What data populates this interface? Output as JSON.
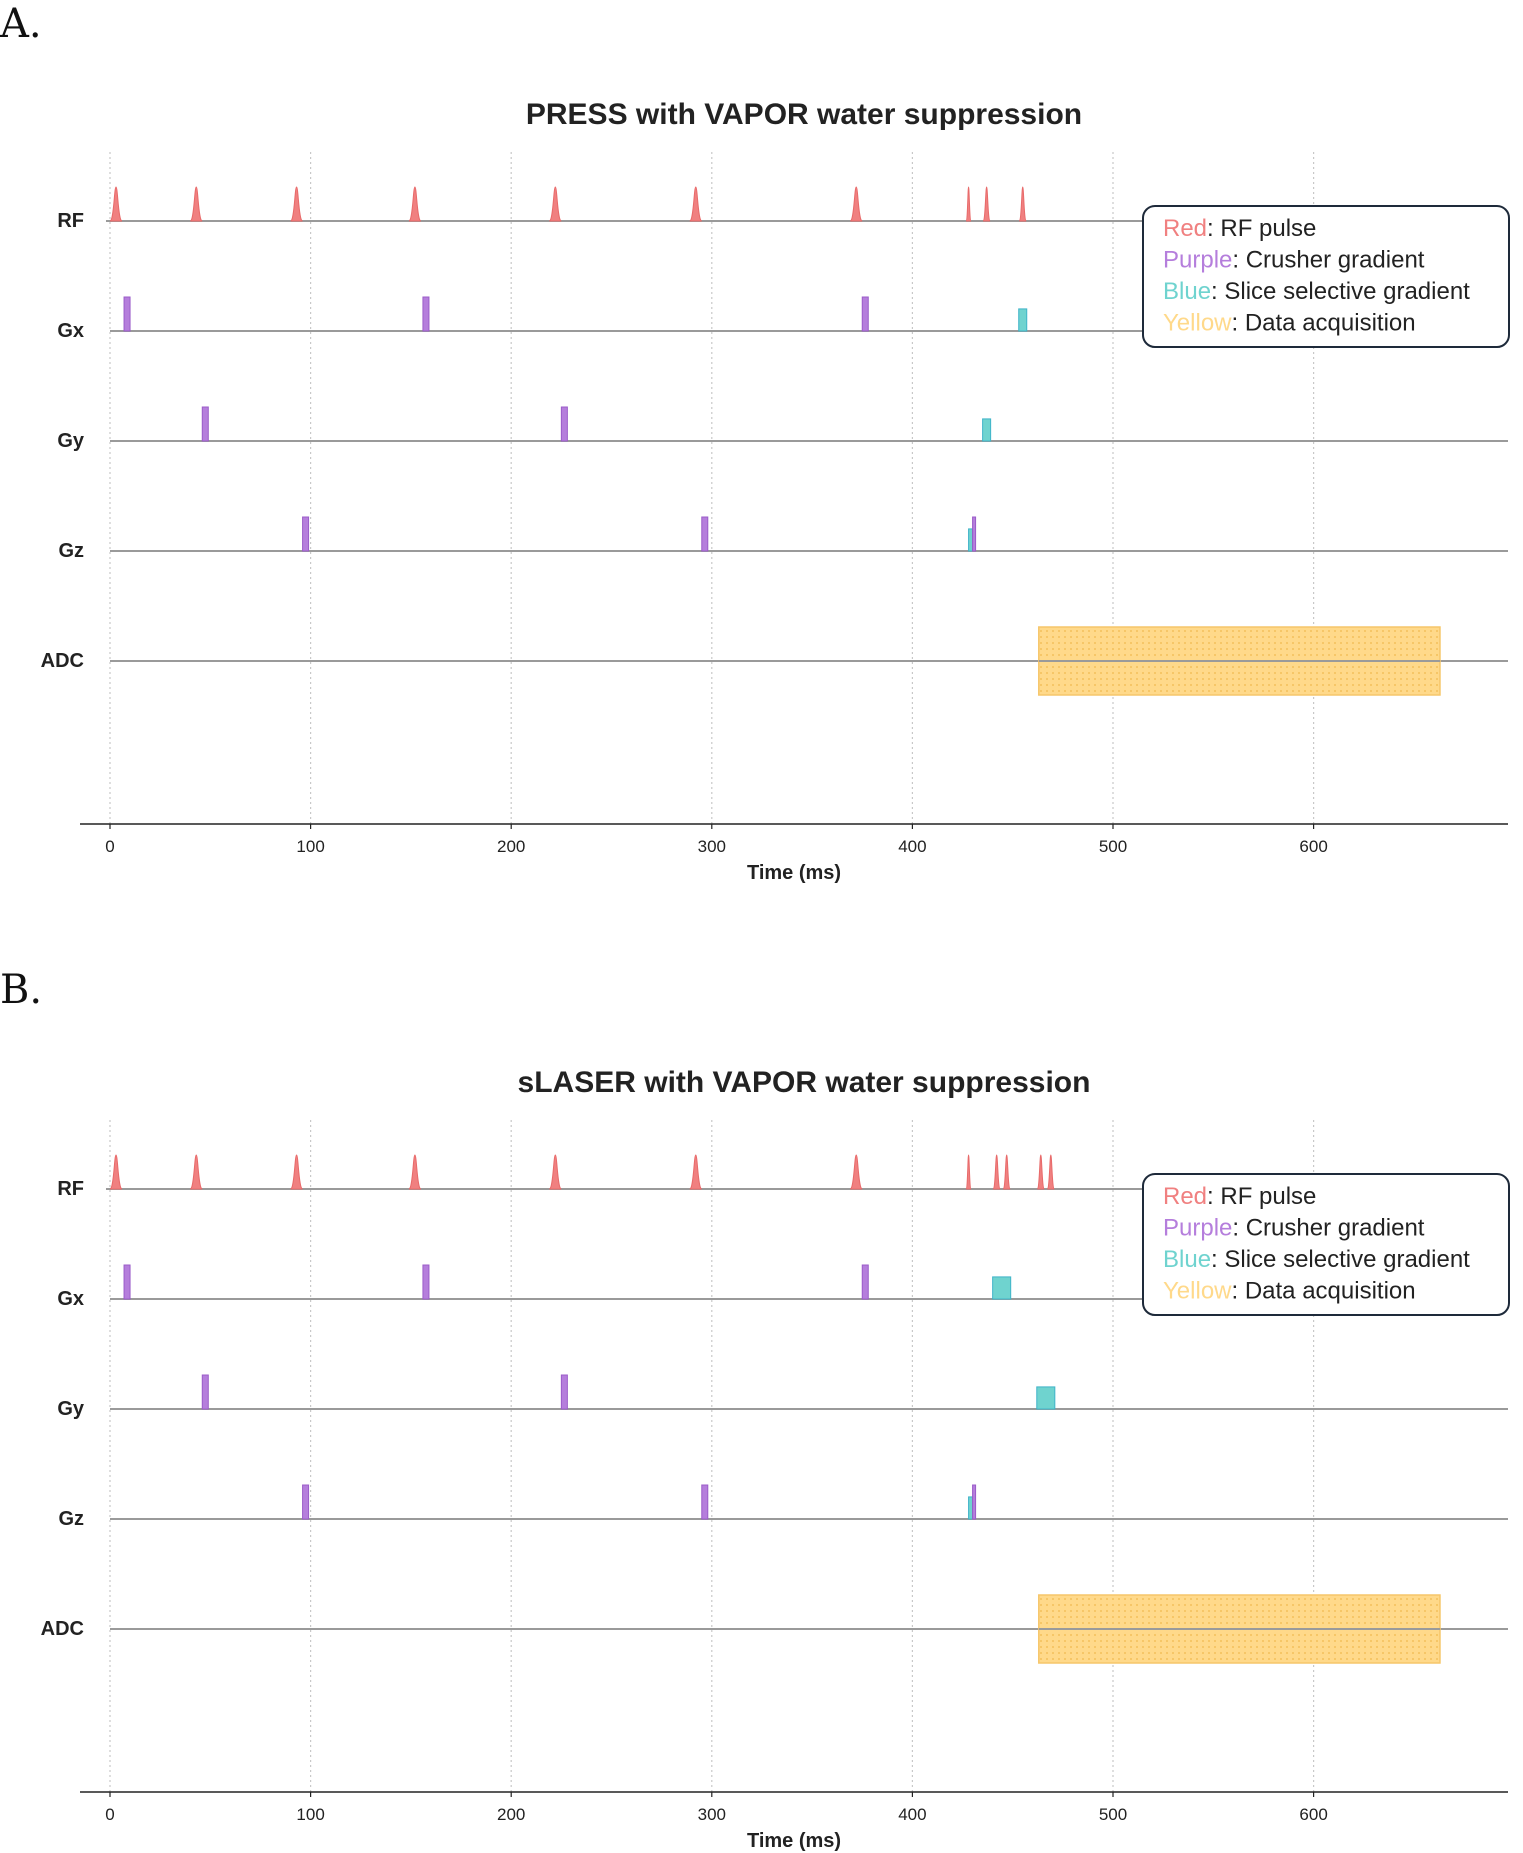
{
  "panels": [
    {
      "letter": "A."
    },
    {
      "letter": "B."
    }
  ],
  "colors": {
    "rf": "#f08080",
    "crusher": "#b57edc",
    "slice": "#6fd3cf",
    "adc": "#ffd98a",
    "baseline": "#9a9a9a",
    "grid": "#c8c8c8"
  },
  "chart_data": [
    {
      "type": "sequence-timeline",
      "title": "PRESS with VAPOR water suppression",
      "xlabel": "Time (ms)",
      "xlim": [
        -15,
        695
      ],
      "xticks": [
        0,
        100,
        200,
        300,
        400,
        500,
        600
      ],
      "rows": [
        "RF",
        "Gx",
        "Gy",
        "Gz",
        "ADC"
      ],
      "legend": [
        {
          "key": "Red",
          "text": ": RF pulse",
          "color": "#f08080"
        },
        {
          "key": "Purple",
          "text": ": Crusher gradient",
          "color": "#b57edc"
        },
        {
          "key": "Blue",
          "text": ": Slice selective gradient",
          "color": "#6fd3cf"
        },
        {
          "key": "Yellow",
          "text": ": Data acquisition",
          "color": "#ffd98a"
        }
      ],
      "rf_pulses": [
        {
          "t": 3,
          "h": 1.0,
          "w": 5
        },
        {
          "t": 43,
          "h": 1.0,
          "w": 5
        },
        {
          "t": 93,
          "h": 1.0,
          "w": 5
        },
        {
          "t": 152,
          "h": 1.0,
          "w": 5
        },
        {
          "t": 222,
          "h": 1.0,
          "w": 5
        },
        {
          "t": 292,
          "h": 1.0,
          "w": 5
        },
        {
          "t": 372,
          "h": 1.0,
          "w": 5
        },
        {
          "t": 428,
          "h": 1.0,
          "w": 1.5
        },
        {
          "t": 437,
          "h": 1.0,
          "w": 2.5
        },
        {
          "t": 455,
          "h": 1.0,
          "w": 2.5
        }
      ],
      "gradients": [
        {
          "row": "Gx",
          "kind": "crusher",
          "t0": 7,
          "t1": 10,
          "h": 1.0
        },
        {
          "row": "Gx",
          "kind": "crusher",
          "t0": 156,
          "t1": 159,
          "h": 1.0
        },
        {
          "row": "Gx",
          "kind": "crusher",
          "t0": 375,
          "t1": 378,
          "h": 1.0
        },
        {
          "row": "Gx",
          "kind": "slice",
          "t0": 453,
          "t1": 457,
          "h": 0.65
        },
        {
          "row": "Gy",
          "kind": "crusher",
          "t0": 46,
          "t1": 49,
          "h": 1.0
        },
        {
          "row": "Gy",
          "kind": "crusher",
          "t0": 225,
          "t1": 228,
          "h": 1.0
        },
        {
          "row": "Gy",
          "kind": "slice",
          "t0": 435,
          "t1": 439,
          "h": 0.65
        },
        {
          "row": "Gz",
          "kind": "crusher",
          "t0": 96,
          "t1": 99,
          "h": 1.0
        },
        {
          "row": "Gz",
          "kind": "crusher",
          "t0": 295,
          "t1": 298,
          "h": 1.0
        },
        {
          "row": "Gz",
          "kind": "slice",
          "t0": 428,
          "t1": 430,
          "h": 0.65
        },
        {
          "row": "Gz",
          "kind": "crusher",
          "t0": 430,
          "t1": 431.5,
          "h": 1.0
        }
      ],
      "adc": {
        "t0": 463,
        "t1": 663
      }
    },
    {
      "type": "sequence-timeline",
      "title": "sLASER with VAPOR water suppression",
      "xlabel": "Time (ms)",
      "xlim": [
        -15,
        695
      ],
      "xticks": [
        0,
        100,
        200,
        300,
        400,
        500,
        600
      ],
      "rows": [
        "RF",
        "Gx",
        "Gy",
        "Gz",
        "ADC"
      ],
      "legend": [
        {
          "key": "Red",
          "text": ": RF pulse",
          "color": "#f08080"
        },
        {
          "key": "Purple",
          "text": ": Crusher gradient",
          "color": "#b57edc"
        },
        {
          "key": "Blue",
          "text": ": Slice selective gradient",
          "color": "#6fd3cf"
        },
        {
          "key": "Yellow",
          "text": ": Data acquisition",
          "color": "#ffd98a"
        }
      ],
      "rf_pulses": [
        {
          "t": 3,
          "h": 1.0,
          "w": 5
        },
        {
          "t": 43,
          "h": 1.0,
          "w": 5
        },
        {
          "t": 93,
          "h": 1.0,
          "w": 5
        },
        {
          "t": 152,
          "h": 1.0,
          "w": 5
        },
        {
          "t": 222,
          "h": 1.0,
          "w": 5
        },
        {
          "t": 292,
          "h": 1.0,
          "w": 5
        },
        {
          "t": 372,
          "h": 1.0,
          "w": 5
        },
        {
          "t": 428,
          "h": 1.0,
          "w": 1.5
        },
        {
          "t": 442,
          "h": 1.0,
          "w": 2.5
        },
        {
          "t": 447,
          "h": 1.0,
          "w": 2.5
        },
        {
          "t": 464,
          "h": 1.0,
          "w": 2.5
        },
        {
          "t": 469,
          "h": 1.0,
          "w": 2.5
        }
      ],
      "gradients": [
        {
          "row": "Gx",
          "kind": "crusher",
          "t0": 7,
          "t1": 10,
          "h": 1.0
        },
        {
          "row": "Gx",
          "kind": "crusher",
          "t0": 156,
          "t1": 159,
          "h": 1.0
        },
        {
          "row": "Gx",
          "kind": "crusher",
          "t0": 375,
          "t1": 378,
          "h": 1.0
        },
        {
          "row": "Gx",
          "kind": "slice",
          "t0": 440,
          "t1": 449,
          "h": 0.65
        },
        {
          "row": "Gy",
          "kind": "crusher",
          "t0": 46,
          "t1": 49,
          "h": 1.0
        },
        {
          "row": "Gy",
          "kind": "crusher",
          "t0": 225,
          "t1": 228,
          "h": 1.0
        },
        {
          "row": "Gy",
          "kind": "slice",
          "t0": 462,
          "t1": 471,
          "h": 0.65
        },
        {
          "row": "Gz",
          "kind": "crusher",
          "t0": 96,
          "t1": 99,
          "h": 1.0
        },
        {
          "row": "Gz",
          "kind": "crusher",
          "t0": 295,
          "t1": 298,
          "h": 1.0
        },
        {
          "row": "Gz",
          "kind": "slice",
          "t0": 428,
          "t1": 430,
          "h": 0.65
        },
        {
          "row": "Gz",
          "kind": "crusher",
          "t0": 430,
          "t1": 431.5,
          "h": 1.0
        }
      ],
      "adc": {
        "t0": 463,
        "t1": 663
      }
    }
  ]
}
